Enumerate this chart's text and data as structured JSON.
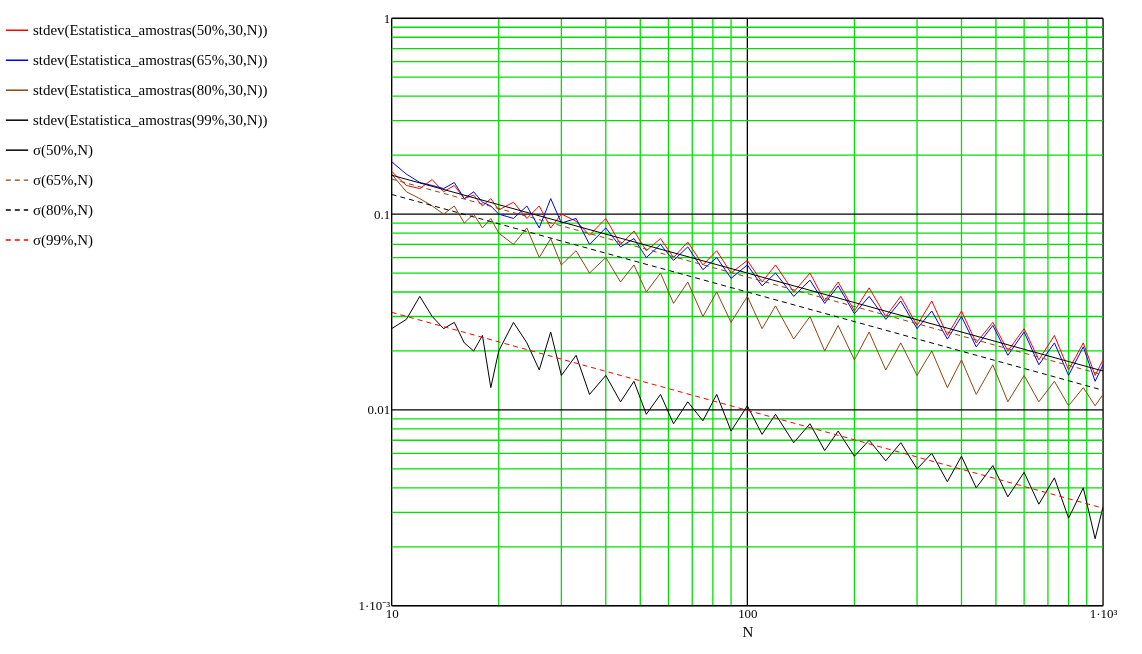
{
  "chart_data": {
    "type": "line",
    "xlabel": "N",
    "log": "xy",
    "grid": true,
    "legend": "left",
    "xlim": [
      10,
      1000
    ],
    "ylim": [
      0.001,
      1
    ],
    "xticks": [
      10,
      {
        "value": 20,
        "label": null
      },
      {
        "value": 30,
        "label": null
      },
      {
        "value": 40,
        "label": null
      },
      {
        "value": 50,
        "label": null
      },
      {
        "value": 60,
        "label": null
      },
      {
        "value": 70,
        "label": null
      },
      {
        "value": 80,
        "label": null
      },
      {
        "value": 90,
        "label": null
      },
      100,
      {
        "value": 200,
        "label": null
      },
      {
        "value": 300,
        "label": null
      },
      {
        "value": 400,
        "label": null
      },
      {
        "value": 500,
        "label": null
      },
      {
        "value": 600,
        "label": null
      },
      {
        "value": 700,
        "label": null
      },
      {
        "value": 800,
        "label": null
      },
      {
        "value": 900,
        "label": null
      },
      {
        "value": 1000,
        "label": "1·10³"
      }
    ],
    "yticks": [
      {
        "value": 0.001,
        "label": "1·10⁻³"
      },
      {
        "value": 0.002,
        "label": null
      },
      {
        "value": 0.003,
        "label": null
      },
      {
        "value": 0.004,
        "label": null
      },
      {
        "value": 0.005,
        "label": null
      },
      {
        "value": 0.006,
        "label": null
      },
      {
        "value": 0.007,
        "label": null
      },
      {
        "value": 0.008,
        "label": null
      },
      {
        "value": 0.009,
        "label": null
      },
      0.01,
      {
        "value": 0.02,
        "label": null
      },
      {
        "value": 0.03,
        "label": null
      },
      {
        "value": 0.04,
        "label": null
      },
      {
        "value": 0.05,
        "label": null
      },
      {
        "value": 0.06,
        "label": null
      },
      {
        "value": 0.07,
        "label": null
      },
      {
        "value": 0.08,
        "label": null
      },
      {
        "value": 0.09,
        "label": null
      },
      0.1,
      {
        "value": 0.2,
        "label": null
      },
      {
        "value": 0.3,
        "label": null
      },
      {
        "value": 0.4,
        "label": null
      },
      {
        "value": 0.5,
        "label": null
      },
      {
        "value": 0.6,
        "label": null
      },
      {
        "value": 0.7,
        "label": null
      },
      {
        "value": 0.8,
        "label": null
      },
      {
        "value": 0.9,
        "label": null
      },
      1
    ],
    "x": [
      10,
      11,
      12,
      13,
      14,
      15,
      16,
      17,
      18,
      19,
      20,
      22,
      24,
      26,
      28,
      30,
      33,
      36,
      40,
      44,
      48,
      52,
      57,
      62,
      68,
      75,
      82,
      90,
      100,
      110,
      120,
      135,
      150,
      165,
      180,
      200,
      220,
      245,
      270,
      300,
      330,
      365,
      400,
      440,
      490,
      540,
      600,
      660,
      730,
      800,
      880,
      950,
      1000
    ],
    "series": [
      {
        "name": "stdev(Estatistica_amostras(50%,30,N))",
        "color": "#ff0000",
        "line_style": "solid",
        "values": [
          0.165,
          0.14,
          0.135,
          0.15,
          0.13,
          0.14,
          0.12,
          0.125,
          0.11,
          0.12,
          0.105,
          0.115,
          0.095,
          0.11,
          0.085,
          0.1,
          0.092,
          0.078,
          0.095,
          0.07,
          0.082,
          0.065,
          0.075,
          0.06,
          0.072,
          0.055,
          0.065,
          0.05,
          0.058,
          0.045,
          0.055,
          0.04,
          0.05,
          0.036,
          0.045,
          0.032,
          0.042,
          0.03,
          0.038,
          0.027,
          0.036,
          0.024,
          0.032,
          0.022,
          0.028,
          0.02,
          0.026,
          0.018,
          0.024,
          0.016,
          0.022,
          0.015,
          0.018
        ]
      },
      {
        "name": "stdev(Estatistica_amostras(65%,30,N))",
        "color": "#0000ff",
        "line_style": "solid",
        "values": [
          0.185,
          0.16,
          0.145,
          0.14,
          0.135,
          0.145,
          0.12,
          0.13,
          0.115,
          0.11,
          0.1,
          0.095,
          0.11,
          0.085,
          0.12,
          0.09,
          0.095,
          0.07,
          0.085,
          0.068,
          0.075,
          0.06,
          0.07,
          0.058,
          0.068,
          0.052,
          0.06,
          0.047,
          0.055,
          0.043,
          0.05,
          0.038,
          0.046,
          0.035,
          0.043,
          0.031,
          0.038,
          0.029,
          0.036,
          0.026,
          0.032,
          0.023,
          0.03,
          0.021,
          0.027,
          0.019,
          0.025,
          0.017,
          0.022,
          0.015,
          0.021,
          0.014,
          0.017
        ]
      },
      {
        "name": "stdev(Estatistica_amostras(80%,30,N))",
        "color": "#8b4513",
        "line_style": "solid",
        "values": [
          0.16,
          0.13,
          0.12,
          0.11,
          0.1,
          0.11,
          0.09,
          0.1,
          0.085,
          0.095,
          0.08,
          0.07,
          0.085,
          0.06,
          0.075,
          0.055,
          0.065,
          0.05,
          0.06,
          0.045,
          0.055,
          0.04,
          0.05,
          0.035,
          0.045,
          0.03,
          0.04,
          0.028,
          0.038,
          0.026,
          0.034,
          0.023,
          0.03,
          0.02,
          0.027,
          0.018,
          0.025,
          0.016,
          0.022,
          0.015,
          0.02,
          0.013,
          0.018,
          0.012,
          0.017,
          0.011,
          0.015,
          0.011,
          0.014,
          0.0105,
          0.013,
          0.0105,
          0.012
        ]
      },
      {
        "name": "stdev(Estatistica_amostras(99%,30,N))",
        "color": "#000000",
        "line_style": "solid",
        "values": [
          0.026,
          0.029,
          0.038,
          0.03,
          0.026,
          0.028,
          0.022,
          0.02,
          0.024,
          0.013,
          0.02,
          0.028,
          0.022,
          0.016,
          0.025,
          0.015,
          0.019,
          0.012,
          0.015,
          0.011,
          0.014,
          0.0095,
          0.012,
          0.0085,
          0.011,
          0.0088,
          0.012,
          0.0078,
          0.0105,
          0.0075,
          0.0095,
          0.0068,
          0.0085,
          0.0062,
          0.0078,
          0.0058,
          0.007,
          0.0055,
          0.0068,
          0.005,
          0.006,
          0.0043,
          0.0058,
          0.004,
          0.0052,
          0.0036,
          0.0048,
          0.0033,
          0.0045,
          0.0028,
          0.004,
          0.0022,
          0.0032
        ]
      },
      {
        "name": "σ(50%,N)",
        "color": "#000000",
        "line_style": "solid",
        "x": [
          10,
          100,
          1000
        ],
        "values": [
          0.158,
          0.05,
          0.0158
        ]
      },
      {
        "name": "σ(65%,N)",
        "color": "#8b4513",
        "line_style": "dashed",
        "x": [
          10,
          100,
          1000
        ],
        "values": [
          0.151,
          0.0477,
          0.0151
        ]
      },
      {
        "name": "σ(80%,N)",
        "color": "#000000",
        "line_style": "dashed",
        "x": [
          10,
          100,
          1000
        ],
        "values": [
          0.126,
          0.04,
          0.0126
        ]
      },
      {
        "name": "σ(99%,N)",
        "color": "#ff0000",
        "line_style": "dashed",
        "x": [
          10,
          100,
          1000
        ],
        "values": [
          0.0315,
          0.00995,
          0.00315
        ]
      }
    ]
  }
}
